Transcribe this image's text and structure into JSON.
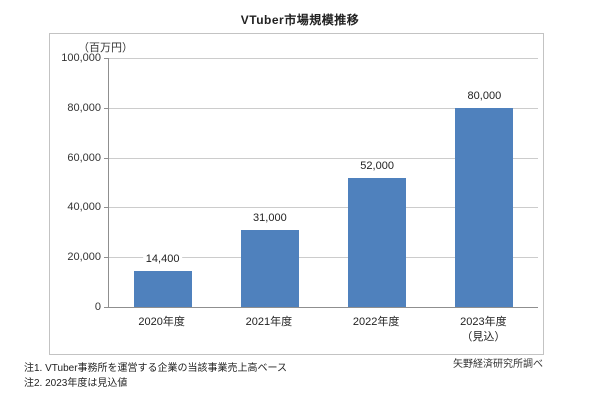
{
  "title": "VTuber市場規模推移",
  "source": "矢野経済研究所調べ",
  "notes": [
    "注1. VTuber事務所を運営する企業の当該事業売上高ベース",
    "注2. 2023年度は見込値"
  ],
  "colors": {
    "bar": "#4f81bd",
    "gridline": "#cccccc",
    "axis": "#8f8f8f",
    "box_border": "#c3c3c3",
    "text": "#222222"
  },
  "chart_data": {
    "type": "bar",
    "title": "VTuber市場規模推移",
    "ylabel": "（百万円）",
    "xlabel": "",
    "categories": [
      "2020年度",
      "2021年度",
      "2022年度",
      "2023年度"
    ],
    "category_sublabels": [
      "",
      "",
      "",
      "（見込）"
    ],
    "values": [
      14400,
      31000,
      52000,
      80000
    ],
    "value_labels": [
      "14,400",
      "31,000",
      "52,000",
      "80,000"
    ],
    "ylim": [
      0,
      100000
    ],
    "ytick_values": [
      0,
      20000,
      40000,
      60000,
      80000,
      100000
    ],
    "yticks": [
      "0",
      "20,000",
      "40,000",
      "60,000",
      "80,000",
      "100,000"
    ],
    "grid": true,
    "legend": "none",
    "bar_color": "#4f81bd"
  }
}
